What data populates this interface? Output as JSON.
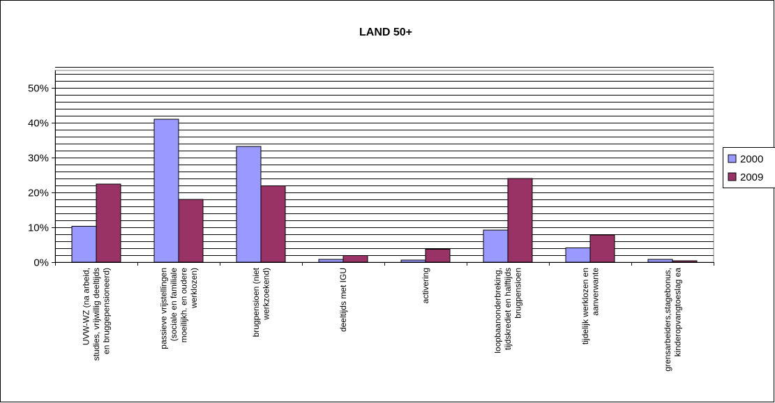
{
  "chart_data": {
    "type": "bar",
    "title": "LAND 50+",
    "xlabel": "",
    "ylabel": "",
    "ylim": [
      0,
      0.55
    ],
    "yticks": [
      0,
      0.1,
      0.2,
      0.3,
      0.4,
      0.5
    ],
    "ytick_labels": [
      "0%",
      "10%",
      "20%",
      "30%",
      "40%",
      "50%"
    ],
    "minor_gridline_step": 0.02,
    "grid": true,
    "legend_position": "right",
    "categories": [
      "UVW-WZ (na arbeid, studies, vrijwillig deeltijds en bruggepensioneerd)",
      "passieve vrijstellingen (sociale en familiale moeilijkh. en oudere werklozen)",
      "brugpensioen (niet werkzoekend)",
      "deeltijds met IGU",
      "activering",
      "loopbaanonderbreking, tijdskrediet en halftijds brugpensioen",
      "tijdelijk werklozen en aanverwante",
      "grensarbeiders,stagebonus, kinderopvangtoeslag ea"
    ],
    "category_label_lines": [
      [
        "UVW-WZ (na arbeid,",
        "studies, vrijwillig deeltijds",
        "en bruggepensioneerd)"
      ],
      [
        "passieve vrijstellingen",
        "(sociale en familiale",
        "moeilijkh. en oudere",
        "werklozen)"
      ],
      [
        "brugpensioen (niet",
        "werkzoekend)"
      ],
      [
        "deeltijds met IGU"
      ],
      [
        "activering"
      ],
      [
        "loopbaanonderbreking,",
        "tijdskrediet en halftijds",
        "brugpensioen"
      ],
      [
        "tijdelijk werklozen en",
        "aanverwante"
      ],
      [
        "grensarbeiders,stagebonus,",
        "kinderopvangtoeslag ea"
      ]
    ],
    "series": [
      {
        "name": "2000",
        "color": "#9999FF",
        "values": [
          0.103,
          0.41,
          0.332,
          0.008,
          0.006,
          0.092,
          0.041,
          0.008
        ]
      },
      {
        "name": "2009",
        "color": "#993366",
        "values": [
          0.224,
          0.18,
          0.219,
          0.019,
          0.037,
          0.24,
          0.078,
          0.004
        ]
      }
    ]
  }
}
